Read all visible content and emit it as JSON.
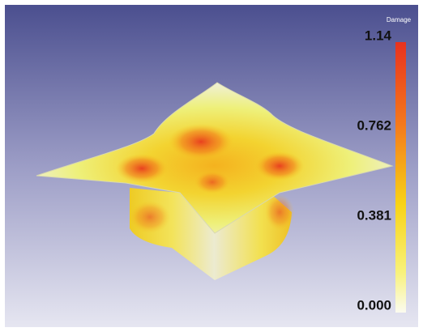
{
  "legend": {
    "title": "Damage",
    "ticks": [
      "1.14",
      "0.762",
      "0.381",
      "0.000"
    ]
  }
}
